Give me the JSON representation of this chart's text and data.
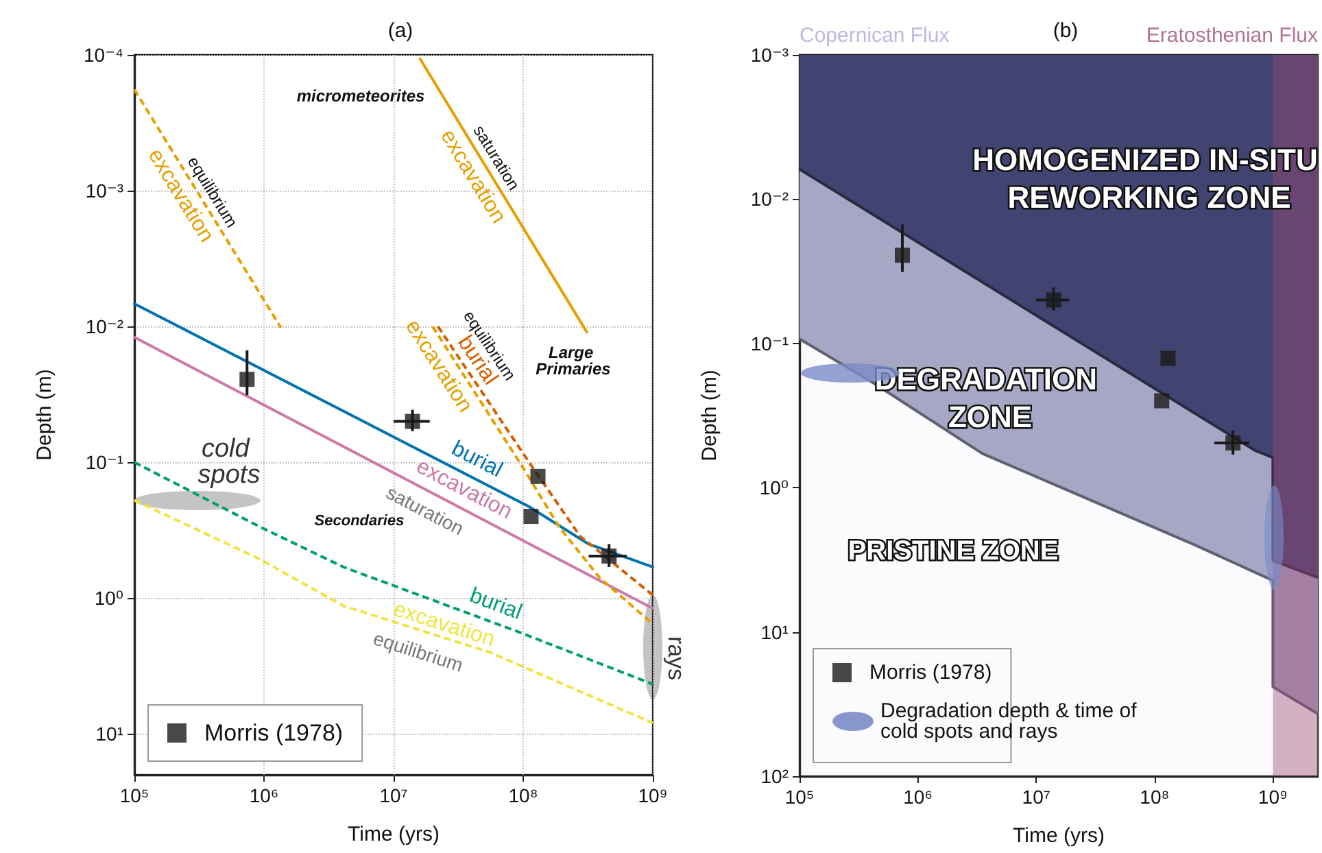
{
  "chart_data": [
    {
      "type": "line",
      "title": "(a)",
      "xlabel": "Time (yrs)",
      "ylabel": "Depth (m)",
      "log": "xy",
      "grid": true,
      "legend": "bottom left",
      "xlim": [
        100000,
        1000000000
      ],
      "ylim": [
        20,
        0.0001
      ],
      "xticks": [
        {
          "value": 100000,
          "label": "10⁵"
        },
        {
          "value": 1000000,
          "label": "10⁶"
        },
        {
          "value": 10000000,
          "label": "10⁷"
        },
        {
          "value": 100000000,
          "label": "10⁸"
        },
        {
          "value": 1000000000,
          "label": "10⁹"
        }
      ],
      "yticks": [
        {
          "value": 0.0001,
          "label": "10⁻⁴"
        },
        {
          "value": 0.001,
          "label": "10⁻³"
        },
        {
          "value": 0.01,
          "label": "10⁻²"
        },
        {
          "value": 0.1,
          "label": "10⁻¹"
        },
        {
          "value": 1,
          "label": "10⁰"
        },
        {
          "value": 10,
          "label": "10¹"
        }
      ],
      "series": [
        {
          "type": "scatter",
          "name": "Morris (1978)",
          "color": "#1a1a1a",
          "marker": "square",
          "x": [
            740000,
            14000000,
            130000000,
            115000000,
            460000000
          ],
          "values": [
            0.0245,
            0.05,
            0.127,
            0.25,
            0.49
          ],
          "errors": [
            [
              0.015,
              0.032
            ],
            [
              0.041,
              0.059
            ],
            null,
            null,
            [
              0.4,
              0.59
            ]
          ],
          "xerrors": [
            null,
            [
              10000000,
              19000000
            ],
            null,
            null,
            [
              320000000,
              630000000
            ]
          ]
        },
        {
          "name": "burial",
          "color": "#0072b2",
          "line_style": "solid",
          "x": [
            100000,
            109000000,
            320000000,
            1000000000
          ],
          "values": [
            0.0068,
            0.21,
            0.4,
            0.59
          ]
        },
        {
          "name": "excavation",
          "color": "#cc79a7",
          "line_style": "solid",
          "x": [
            100000,
            1000000000
          ],
          "values": [
            0.012,
            1.19
          ]
        },
        {
          "name": "burial",
          "color": "#009e73",
          "line_style": "dashed",
          "x": [
            100000,
            940000,
            4100000,
            96000000,
            1000000000
          ],
          "values": [
            0.1,
            0.3,
            0.59,
            1.8,
            4.3
          ]
        },
        {
          "name": "excavation",
          "color": "#f0e442",
          "line_style": "dashed",
          "x": [
            100000,
            940000,
            4100000,
            55000000,
            1000000000
          ],
          "values": [
            0.19,
            0.52,
            1.14,
            2.5,
            8.3
          ]
        },
        {
          "name": "excavation",
          "color": "#e69f00",
          "line_style": "dashed",
          "x": [
            100000,
            1350000
          ],
          "values": [
            0.00018,
            0.0102
          ]
        },
        {
          "name": "excavation",
          "color": "#e69f00",
          "line_style": "solid",
          "x": [
            16000000,
            310000000
          ],
          "values": [
            0.000107,
            0.011
          ]
        },
        {
          "name": "burial",
          "color": "#d55e00",
          "line_style": "dashed",
          "x": [
            22000000,
            115000000,
            275000000,
            1000000000
          ],
          "values": [
            0.01,
            0.105,
            0.35,
            0.95
          ]
        },
        {
          "name": "excavation",
          "color": "#e69f00",
          "line_style": "dashed",
          "x": [
            20000000,
            100000000,
            190000000,
            390000000,
            1000000000
          ],
          "values": [
            0.01,
            0.11,
            0.3,
            0.71,
            1.55
          ]
        }
      ],
      "annotations": [
        "micrometeorites",
        "equilibrium",
        "saturation",
        "equilibrium",
        "Large Primaries",
        "saturation",
        "Secondaries",
        "equilibrium",
        "cold spots",
        "rays"
      ]
    },
    {
      "type": "area",
      "title": "(b)",
      "xlabel": "Time (yrs)",
      "ylabel": "Depth (m)",
      "log": "xy",
      "legend": "bottom left",
      "xlim": [
        100000,
        2400000000
      ],
      "ylim": [
        100,
        0.001
      ],
      "xticks": [
        {
          "value": 100000,
          "label": "10⁵"
        },
        {
          "value": 1000000,
          "label": "10⁶"
        },
        {
          "value": 10000000,
          "label": "10⁷"
        },
        {
          "value": 100000000,
          "label": "10⁸"
        },
        {
          "value": 1000000000,
          "label": "10⁹"
        }
      ],
      "yticks": [
        {
          "value": 0.001,
          "label": "10⁻³"
        },
        {
          "value": 0.01,
          "label": "10⁻²"
        },
        {
          "value": 0.1,
          "label": "10⁻¹"
        },
        {
          "value": 1,
          "label": "10⁰"
        },
        {
          "value": 10,
          "label": "10¹"
        },
        {
          "value": 100,
          "label": "10²"
        }
      ],
      "series": [
        {
          "color": "#a6a7c3",
          "x": [
            100000,
            430000,
            3500000,
            220000000,
            1000000000,
            1000000000,
            2400000000
          ],
          "values": [
            0.093,
            0.19,
            0.58,
            2.5,
            4.4,
            24,
            37
          ]
        },
        {
          "color": "#3c3f6b",
          "x": [
            100000,
            700000000,
            1000000000,
            1000000000,
            2400000000
          ],
          "values": [
            0.0062,
            0.55,
            0.62,
            3.2,
            4.2
          ]
        },
        {
          "type": "scatter",
          "name": "Morris (1978)",
          "color": "#1a1a1a",
          "marker": "square",
          "x": [
            740000,
            14000000,
            130000000,
            115000000,
            460000000
          ],
          "values": [
            0.0245,
            0.05,
            0.127,
            0.25,
            0.49
          ],
          "errors": [
            [
              0.015,
              0.032
            ],
            [
              0.041,
              0.059
            ],
            null,
            null,
            [
              0.4,
              0.59
            ]
          ],
          "xerrors": [
            null,
            [
              10000000,
              19000000
            ],
            null,
            null,
            [
              320000000,
              630000000
            ]
          ]
        }
      ],
      "bands": [
        {
          "axis": "x",
          "from": 100000,
          "to": 1000000000,
          "label": "Copernican Flux",
          "color": "#a9a9dc"
        },
        {
          "axis": "x",
          "from": 1000000000,
          "to": 2400000000,
          "label": "Eratosthenian Flux",
          "color": "#a0507a"
        }
      ],
      "annotations": [
        "HOMOGENIZED IN-SITU REWORKING ZONE",
        "DEGRADATION ZONE",
        "PRISTINE ZONE",
        "Degradation depth & time of cold spots and rays"
      ]
    }
  ]
}
